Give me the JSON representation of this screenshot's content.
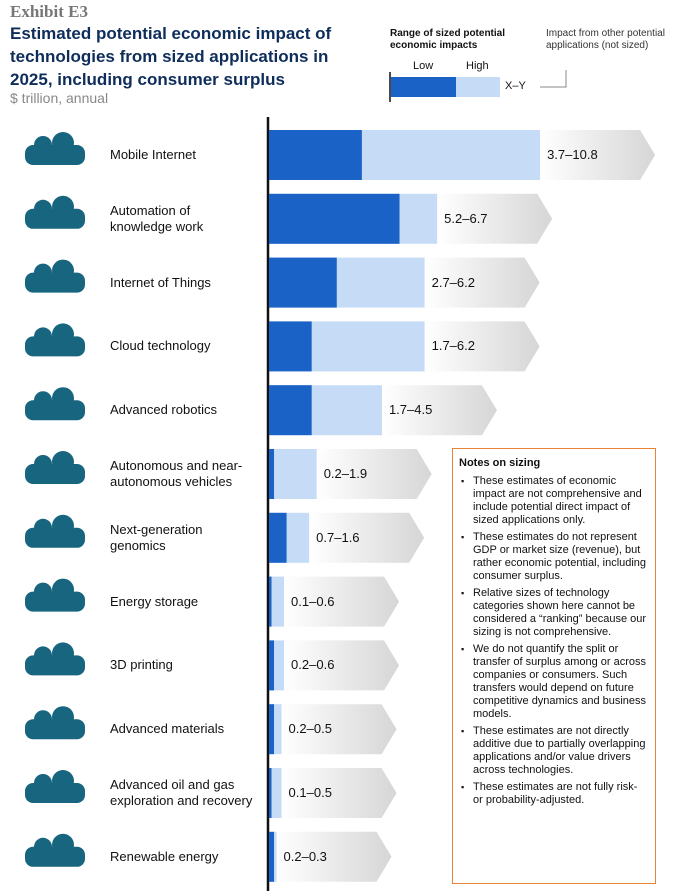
{
  "chart_data": {
    "type": "range-bar",
    "exhibit": "Exhibit E3",
    "title": "Estimated potential economic impact of technologies from sized applications in 2025, including consumer surplus",
    "subtitle": "$ trillion, annual",
    "legend_title": "Range of sized potential economic impacts",
    "legend_sample_label": "X–Y",
    "other_impact_label": "Impact from other potential applications (not sized)",
    "categories": [
      "Mobile Internet",
      "Automation of\nknowledge work",
      "Internet of Things",
      "Cloud technology",
      "Advanced robotics",
      "Autonomous and near-\nautonomous vehicles",
      "Next-generation\ngenomics",
      "Energy storage",
      "3D printing",
      "Advanced materials",
      "Advanced oil and gas\nexploration and recovery",
      "Renewable energy"
    ],
    "series": [
      {
        "name": "Low",
        "color": "#1a62c6",
        "values": [
          3.7,
          5.2,
          2.7,
          1.7,
          1.7,
          0.2,
          0.7,
          0.1,
          0.2,
          0.2,
          0.1,
          0.2
        ]
      },
      {
        "name": "High",
        "color": "#c6dcf6",
        "values": [
          10.8,
          6.7,
          6.2,
          6.2,
          4.5,
          1.9,
          1.6,
          0.6,
          0.6,
          0.5,
          0.5,
          0.3
        ]
      }
    ],
    "value_labels": [
      "3.7–10.8",
      "5.2–6.7",
      "2.7–6.2",
      "1.7–6.2",
      "1.7–4.5",
      "0.2–1.9",
      "0.7–1.6",
      "0.1–0.6",
      "0.2–0.6",
      "0.2–0.5",
      "0.1–0.5",
      "0.2–0.3"
    ]
  },
  "notes": {
    "title": "Notes on sizing",
    "items": [
      "These estimates of economic impact are not comprehensive and include potential direct impact of sized applications only.",
      "These estimates do not represent GDP or market size (revenue), but rather economic potential, including consumer surplus.",
      "Relative sizes of technology categories shown here cannot be considered a “ranking” because our sizing is not comprehensive.",
      "We do not quantify the split or transfer of surplus among or across companies or consumers. Such transfers would depend on future competitive dynamics and business models.",
      "These estimates are not directly additive due to partially overlapping applications and/or value drivers across technologies.",
      "These estimates are not fully risk- or probability-adjusted."
    ]
  }
}
